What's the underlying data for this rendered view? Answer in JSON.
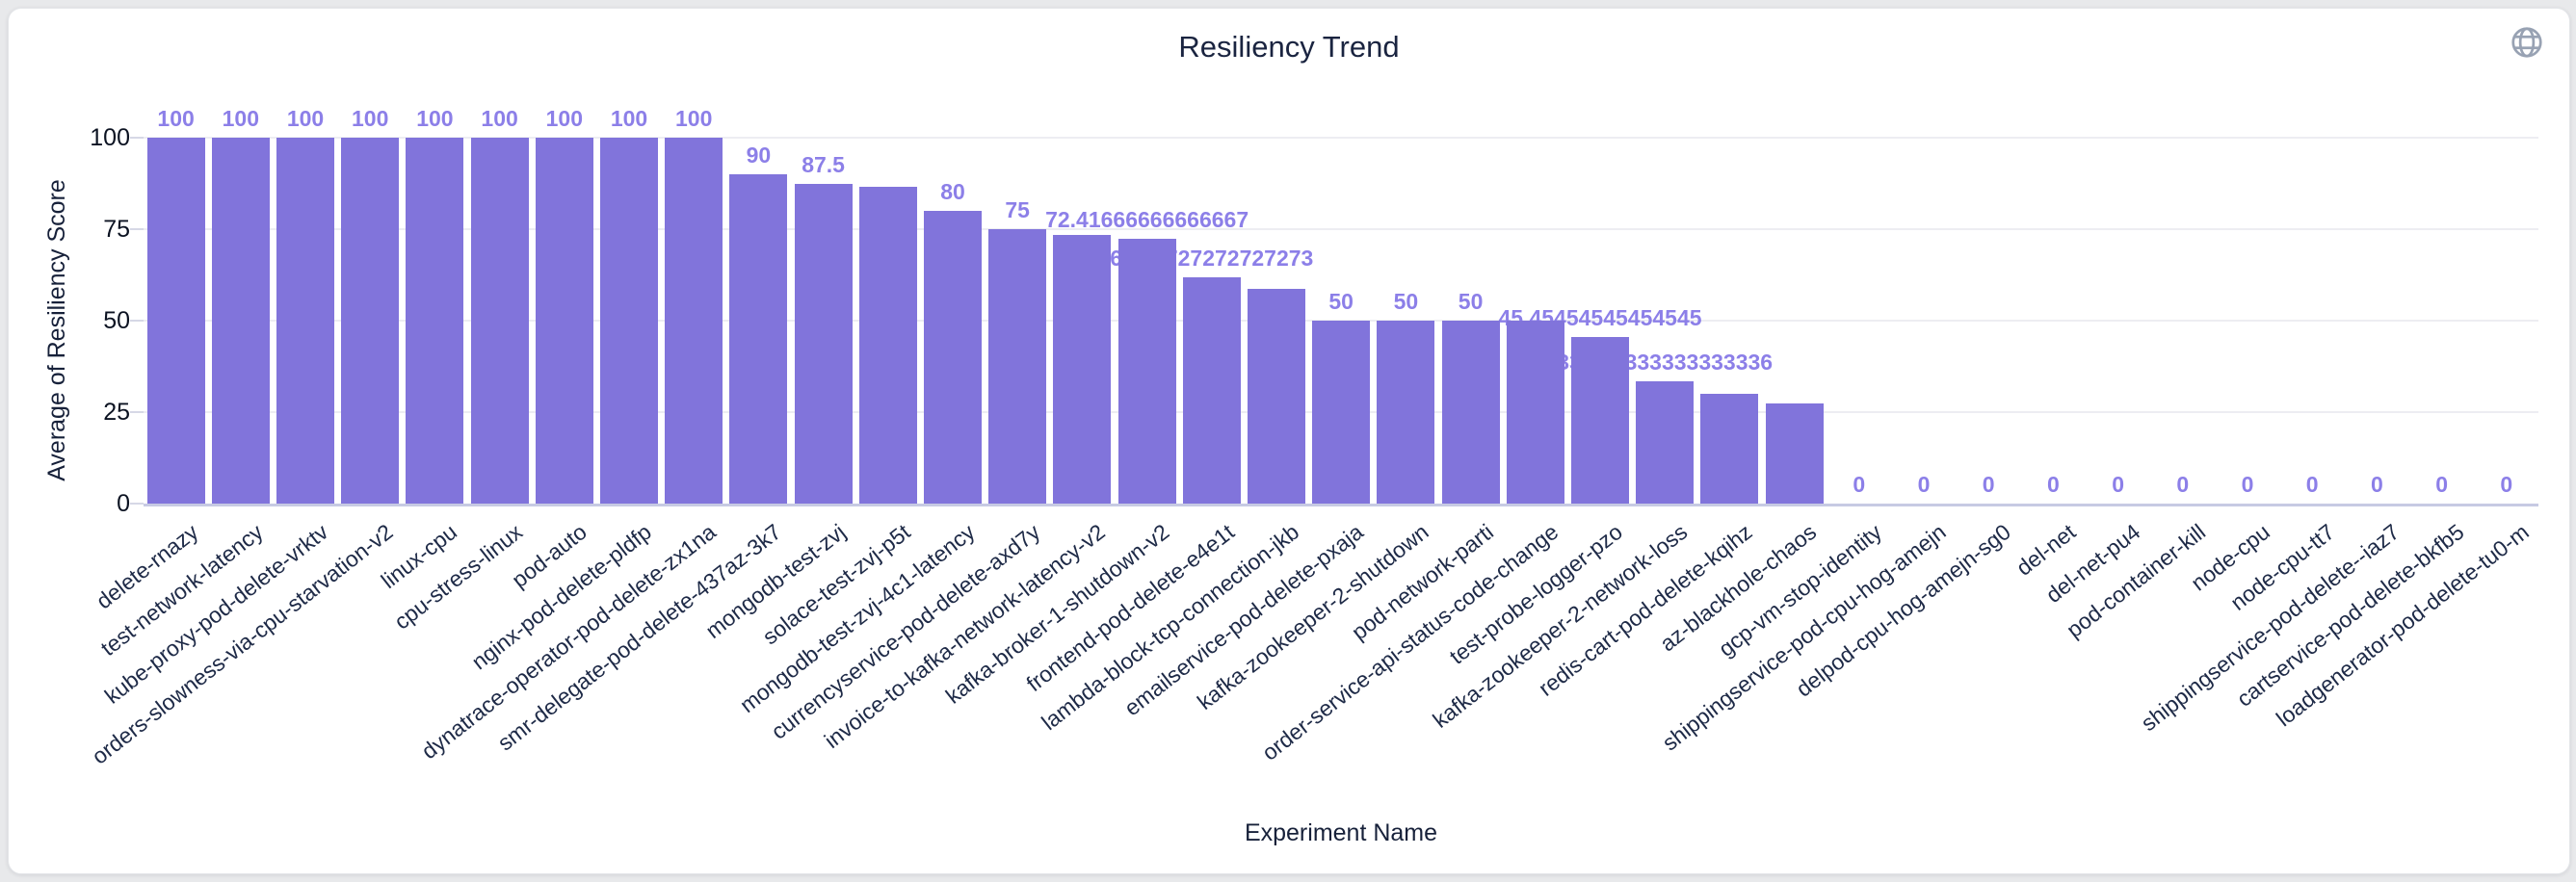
{
  "header": {
    "title": "Resiliency Trend",
    "icon": "globe-icon"
  },
  "chart_data": {
    "type": "bar",
    "title": "Resiliency Trend",
    "xlabel": "Experiment Name",
    "ylabel": "Average of Resiliency Score",
    "ylim": [
      0,
      100
    ],
    "yticks": [
      0,
      25,
      50,
      75,
      100
    ],
    "grid": true,
    "legend": false,
    "bar_color": "#8174DB",
    "value_label_color": "#8C7FE8",
    "categories": [
      "delete-rnazy",
      "test-network-latency",
      "kube-proxy-pod-delete-vrktv",
      "orders-slowness-via-cpu-starvation-v2",
      "linux-cpu",
      "cpu-stress-linux",
      "pod-auto",
      "nginx-pod-delete-pldfp",
      "dynatrace-operator-pod-delete-zx1na",
      "smr-delegate-pod-delete-437az-3k7",
      "mongodb-test-zvj",
      "solace-test-zvj-p5t",
      "mongodb-test-zvj-4c1-latency",
      "currencyservice-pod-delete-axd7y",
      "invoice-to-kafka-network-latency-v2",
      "kafka-broker-1-shutdown-v2",
      "frontend-pod-delete-e4e1t",
      "lambda-block-tcp-connection-jkb",
      "emailservice-pod-delete-pxaja",
      "kafka-zookeeper-2-shutdown",
      "pod-network-parti",
      "order-service-api-status-code-change",
      "test-probe-logger-pzo",
      "kafka-zookeeper-2-network-loss",
      "redis-cart-pod-delete-kqihz",
      "az-blackhole-chaos",
      "gcp-vm-stop-identity",
      "shippingservice-pod-cpu-hog-amejn",
      "delpod-cpu-hog-amejn-sg0",
      "del-net",
      "del-net-pu4",
      "pod-container-kill",
      "node-cpu",
      "node-cpu-tt7",
      "shippingservice-pod-delete--iaz7",
      "cartservice-pod-delete-bkfb5",
      "loadgenerator-pod-delete-tu0-m"
    ],
    "values": [
      100,
      100,
      100,
      100,
      100,
      100,
      100,
      100,
      100,
      90,
      87.5,
      86.67,
      80,
      75,
      73.33,
      72.41666666666667,
      61.72727272727273,
      58.8,
      50,
      50,
      50,
      50,
      45.45454545454545,
      33.333333333333336,
      30,
      27.27,
      0,
      0,
      0,
      0,
      0,
      0,
      0,
      0,
      0,
      0,
      0
    ],
    "bar_labels": [
      "100",
      "100",
      "100",
      "100",
      "100",
      "100",
      "100",
      "100",
      "100",
      "90",
      "87.5",
      null,
      "80",
      "75",
      null,
      "72.41666666666667",
      "61.72727272727273",
      null,
      "50",
      "50",
      "50",
      null,
      "45.45454545454545",
      "33.333333333333336",
      null,
      null,
      "0",
      "0",
      "0",
      "0",
      "0",
      "0",
      "0",
      "0",
      "0",
      "0",
      "0"
    ]
  }
}
